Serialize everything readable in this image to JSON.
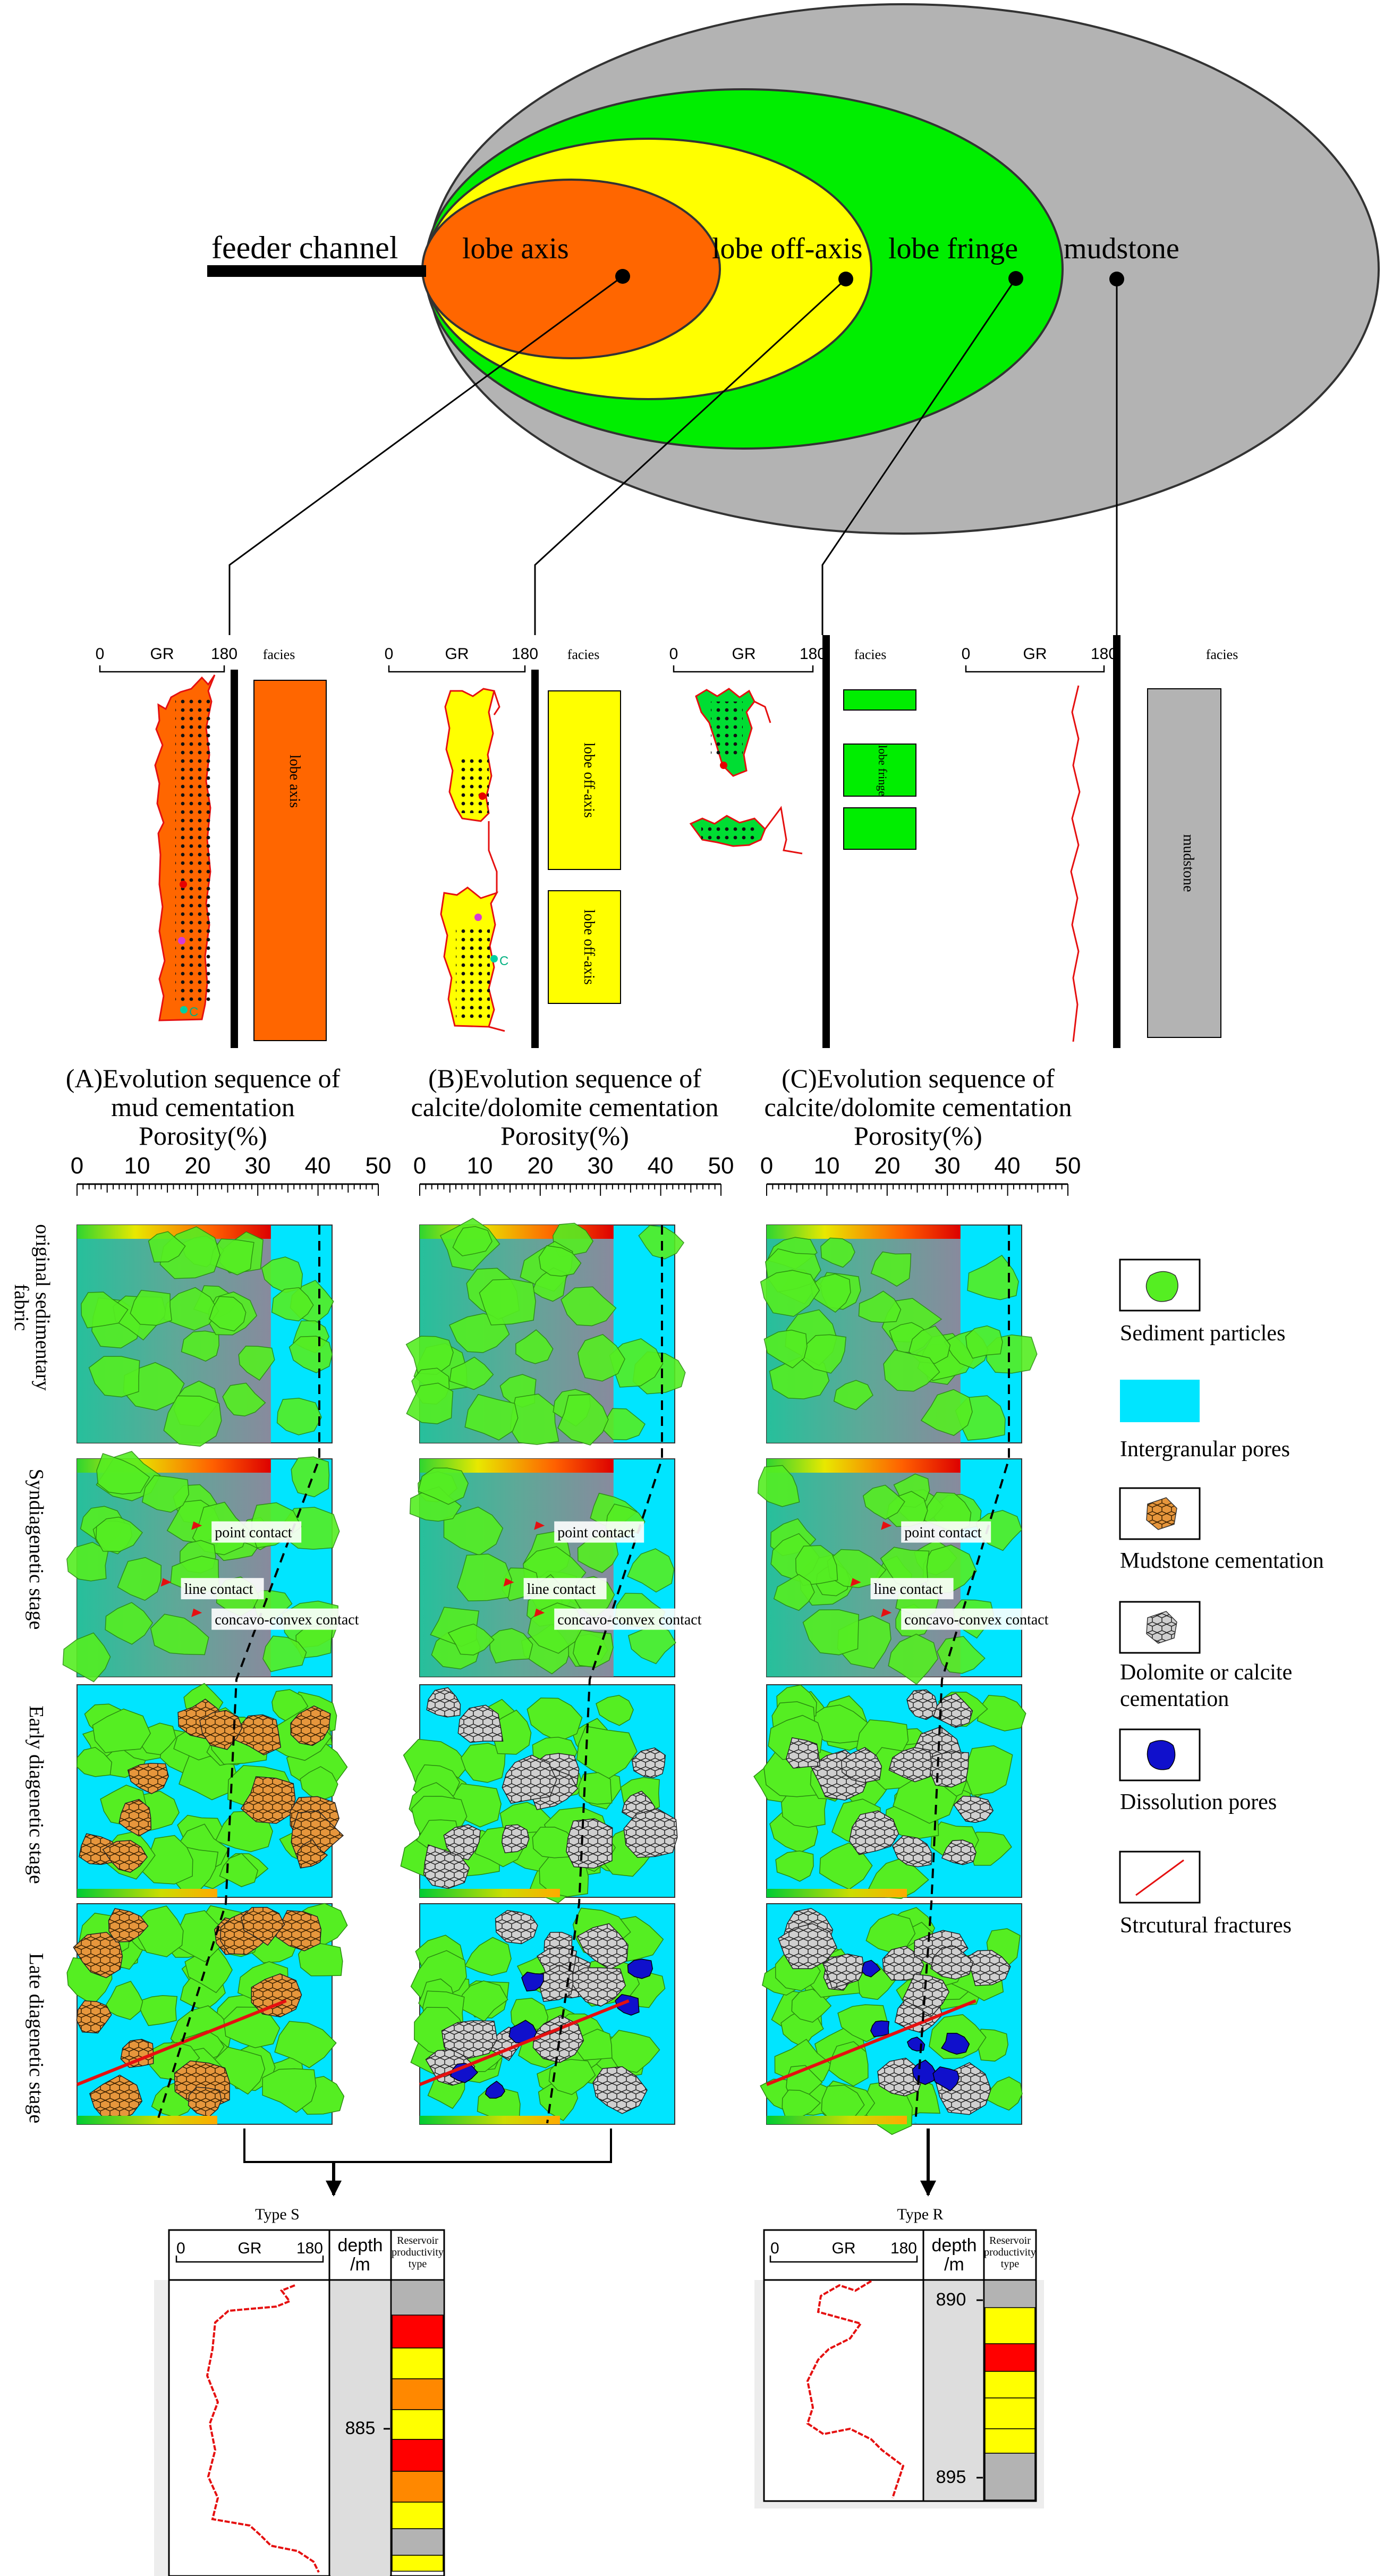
{
  "ellipse": {
    "feeder": "feeder channel",
    "axis": "lobe axis",
    "offaxis": "lobe off-axis",
    "fringe": "lobe fringe",
    "mud": "mudstone",
    "colors": {
      "axis": "#FF6600",
      "offaxis": "#FFFF00",
      "fringe": "#00EE00",
      "mud": "#B3B3B3"
    }
  },
  "logs": {
    "gr": "GR",
    "min": "0",
    "max": "180",
    "facies": "facies",
    "p1": {
      "label": "lobe axis"
    },
    "p2": {
      "upper": "lobe off-axis",
      "lower": "lobe off-axis"
    },
    "p3": {
      "label": "lobe fringe"
    },
    "p4": {
      "label": "mudstone"
    }
  },
  "panels": {
    "a": {
      "title1": "(A)Evolution sequence of",
      "title2": "mud cementation"
    },
    "b": {
      "title1": "(B)Evolution sequence of",
      "title2": "calcite/dolomite cementation"
    },
    "c": {
      "title1": "(C)Evolution sequence of",
      "title2": "calcite/dolomite cementation"
    },
    "axis_title": "Porosity(%)",
    "ticks": [
      "0",
      "10",
      "20",
      "30",
      "40",
      "50"
    ]
  },
  "stages": {
    "s1a": "original sedimentary",
    "s1b": "fabric",
    "s2": "Syndiagenetic stage",
    "s3": "Early diagenetic stage",
    "s4": "Late diagenetic stage"
  },
  "contacts": {
    "point": "point contact",
    "line": "line contact",
    "concavo": "concavo-convex contact"
  },
  "legend": {
    "particles": "Sediment particles",
    "pores": "Intergranular pores",
    "mud": "Mudstone cementation",
    "dolo1": "Dolomite or calcite",
    "dolo2": "cementation",
    "diss": "Dissolution pores",
    "frac": "Strcutural fractures"
  },
  "typeS": {
    "title": "Type S",
    "gr": "GR",
    "min": "0",
    "max": "180",
    "depth1": "depth",
    "depth2": "/m",
    "depth_tick": "885",
    "prod1": "Reservoir",
    "prod2": "productivity",
    "prod3": "type"
  },
  "typeR": {
    "title": "Type R",
    "gr": "GR",
    "min": "0",
    "max": "180",
    "depth1": "depth",
    "depth2": "/m",
    "tick1": "890",
    "tick2": "895",
    "prod1": "Reservoir",
    "prod2": "productivity",
    "prod3": "type"
  }
}
